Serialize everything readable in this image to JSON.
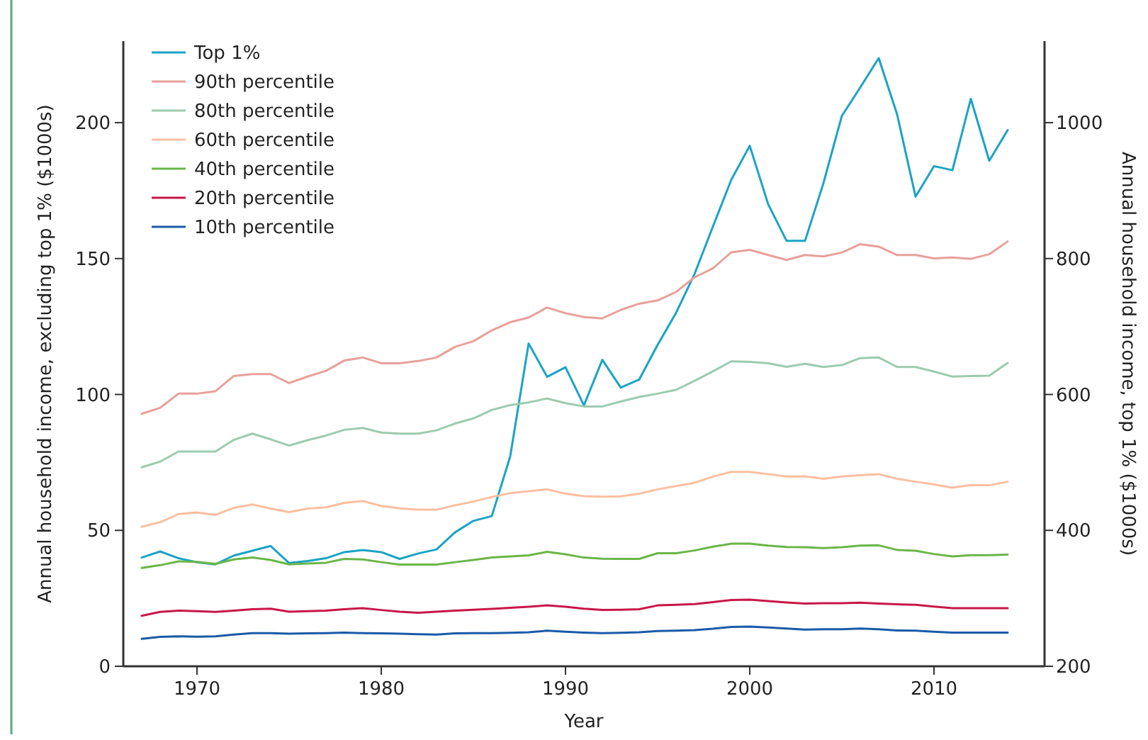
{
  "chart_data": {
    "type": "line",
    "xlabel": "Year",
    "ylabel": "Annual household income, excluding top 1% ($1000s)",
    "y2label": "Annual household income, top 1% ($1000s)",
    "x": [
      1967,
      1968,
      1969,
      1970,
      1971,
      1972,
      1973,
      1974,
      1975,
      1976,
      1977,
      1978,
      1979,
      1980,
      1981,
      1982,
      1983,
      1984,
      1985,
      1986,
      1987,
      1988,
      1989,
      1990,
      1991,
      1992,
      1993,
      1994,
      1995,
      1996,
      1997,
      1998,
      1999,
      2000,
      2001,
      2002,
      2003,
      2004,
      2005,
      2006,
      2007,
      2008,
      2009,
      2010,
      2011,
      2012,
      2013,
      2014
    ],
    "xlim": [
      1966,
      2016
    ],
    "xticks": [
      1970,
      1980,
      1990,
      2000,
      2010
    ],
    "ylim": [
      0,
      230
    ],
    "yticks": [
      0,
      50,
      100,
      150,
      200
    ],
    "y2lim": [
      200,
      1120
    ],
    "y2ticks": [
      200,
      400,
      600,
      800,
      1000
    ],
    "legend": "top left",
    "grid": false,
    "series": [
      {
        "name": "Top 1%",
        "color": "#1ba3c6",
        "axis": "y2",
        "values": [
          360,
          369,
          359,
          353,
          350,
          363,
          370,
          377,
          352,
          355,
          359,
          368,
          371,
          368,
          358,
          366,
          372,
          397,
          414,
          421,
          509,
          675,
          626,
          640,
          584,
          651,
          610,
          622,
          673,
          720,
          777,
          847,
          916,
          966,
          880,
          826,
          826,
          911,
          1010,
          1052,
          1095,
          1012,
          891,
          936,
          930,
          1035,
          944,
          989
        ]
      },
      {
        "name": "90th percentile",
        "color": "#e8a09a",
        "values": [
          92.9,
          95.1,
          100.3,
          100.3,
          101.2,
          106.8,
          107.5,
          107.5,
          104.2,
          106.6,
          108.7,
          112.5,
          113.6,
          111.5,
          111.5,
          112.3,
          113.6,
          117.5,
          119.6,
          123.6,
          126.6,
          128.3,
          132.0,
          129.9,
          128.5,
          128.0,
          131.1,
          133.4,
          134.6,
          137.7,
          143.1,
          146.4,
          152.3,
          153.2,
          151.3,
          149.5,
          151.3,
          150.8,
          152.2,
          155.3,
          154.4,
          151.3,
          151.3,
          150.1,
          150.4,
          149.9,
          151.6,
          156.3
        ]
      },
      {
        "name": "80th percentile",
        "color": "#9ccbb0",
        "values": [
          73.2,
          75.3,
          79.0,
          79.0,
          79.0,
          83.3,
          85.6,
          83.5,
          81.2,
          83.2,
          84.9,
          87.0,
          87.7,
          86.0,
          85.6,
          85.6,
          86.8,
          89.3,
          91.2,
          94.3,
          96.1,
          97.1,
          98.5,
          96.8,
          95.6,
          95.6,
          97.4,
          99.1,
          100.3,
          101.7,
          105.0,
          108.5,
          112.2,
          112.0,
          111.5,
          110.2,
          111.3,
          110.1,
          110.8,
          113.4,
          113.6,
          110.1,
          110.1,
          108.4,
          106.6,
          106.8,
          106.9,
          111.6
        ]
      },
      {
        "name": "60th percentile",
        "color": "#fbbfa0",
        "values": [
          51.3,
          53.0,
          56.0,
          56.6,
          55.7,
          58.3,
          59.5,
          58.0,
          56.7,
          58.0,
          58.5,
          60.1,
          60.8,
          59.0,
          58.1,
          57.6,
          57.6,
          59.2,
          60.6,
          62.3,
          63.7,
          64.4,
          65.1,
          63.5,
          62.6,
          62.4,
          62.5,
          63.5,
          65.1,
          66.3,
          67.5,
          69.8,
          71.5,
          71.5,
          70.7,
          69.8,
          69.9,
          69.0,
          69.8,
          70.3,
          70.7,
          69.0,
          67.9,
          66.9,
          65.7,
          66.7,
          66.6,
          67.9
        ]
      },
      {
        "name": "40th percentile",
        "color": "#6ab648",
        "values": [
          36.2,
          37.2,
          38.6,
          38.4,
          37.7,
          39.3,
          40.0,
          39.1,
          37.5,
          37.8,
          38.1,
          39.5,
          39.3,
          38.3,
          37.4,
          37.4,
          37.4,
          38.3,
          39.1,
          40.0,
          40.4,
          40.8,
          42.1,
          41.2,
          40.0,
          39.6,
          39.5,
          39.5,
          41.6,
          41.6,
          42.6,
          44.0,
          45.1,
          45.1,
          44.4,
          43.9,
          43.8,
          43.5,
          43.8,
          44.4,
          44.5,
          42.8,
          42.5,
          41.3,
          40.4,
          40.9,
          40.9,
          41.1
        ]
      },
      {
        "name": "20th percentile",
        "color": "#c8174a",
        "values": [
          18.6,
          20.0,
          20.5,
          20.3,
          20.0,
          20.5,
          21.0,
          21.2,
          20.1,
          20.3,
          20.5,
          21.0,
          21.4,
          20.7,
          20.1,
          19.7,
          20.1,
          20.5,
          20.8,
          21.1,
          21.5,
          21.9,
          22.4,
          21.9,
          21.2,
          20.7,
          20.8,
          21.0,
          22.4,
          22.6,
          22.9,
          23.6,
          24.4,
          24.5,
          24.0,
          23.5,
          23.1,
          23.2,
          23.2,
          23.4,
          23.1,
          22.8,
          22.6,
          22.0,
          21.4,
          21.4,
          21.4,
          21.4
        ]
      },
      {
        "name": "10th percentile",
        "color": "#1a5aa8",
        "values": [
          10.1,
          10.8,
          11.0,
          10.9,
          11.0,
          11.7,
          12.2,
          12.2,
          12.0,
          12.1,
          12.2,
          12.4,
          12.2,
          12.1,
          12.0,
          11.8,
          11.7,
          12.1,
          12.2,
          12.2,
          12.3,
          12.5,
          13.1,
          12.7,
          12.4,
          12.2,
          12.3,
          12.5,
          13.0,
          13.1,
          13.3,
          13.8,
          14.5,
          14.6,
          14.3,
          13.9,
          13.5,
          13.6,
          13.6,
          13.9,
          13.6,
          13.2,
          13.1,
          12.7,
          12.4,
          12.4,
          12.4,
          12.4
        ]
      }
    ]
  }
}
